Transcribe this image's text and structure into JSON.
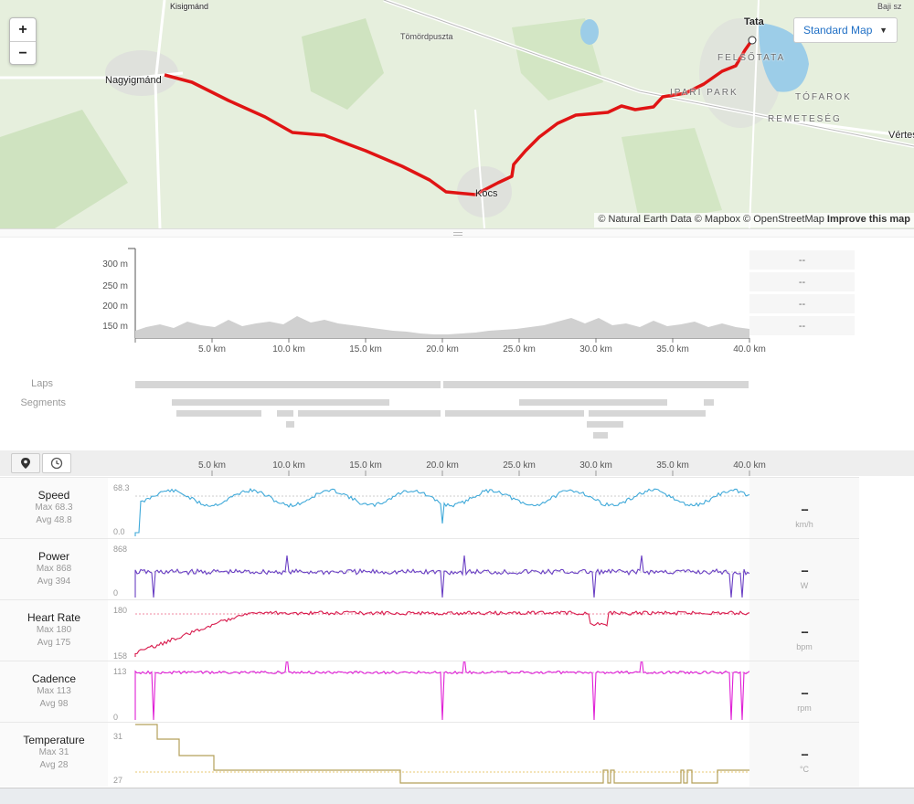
{
  "map": {
    "zoom_in": "+",
    "zoom_out": "−",
    "style_select": "Standard Map",
    "attribution_prefix": "© Natural Earth Data © Mapbox © OpenStreetMap",
    "attribution_link": "Improve this map",
    "labels": {
      "kisigmand": "Kisigmánd",
      "nagyigmand": "Nagyigmánd",
      "tomordpuszta": "Tömördpuszta",
      "tata": "Tata",
      "felsotata": "FELSŐTATA",
      "ipari_park": "IPARI PARK",
      "tofarok": "TÓFAROK",
      "remeteseg": "REMETESÉG",
      "kocs": "Kocs",
      "vertes": "Vértes",
      "baji": "Baji sz"
    }
  },
  "elevation": {
    "y_ticks": [
      "300 m",
      "250 m",
      "200 m",
      "150 m"
    ],
    "x_ticks": [
      "5.0 km",
      "10.0 km",
      "15.0 km",
      "20.0 km",
      "25.0 km",
      "30.0 km",
      "35.0 km",
      "40.0 km"
    ],
    "side_values": [
      "--",
      "--",
      "--",
      "--"
    ],
    "laps_label": "Laps",
    "segments_label": "Segments"
  },
  "toolbar": {
    "x_ticks": [
      "5.0 km",
      "10.0 km",
      "15.0 km",
      "20.0 km",
      "25.0 km",
      "30.0 km",
      "35.0 km",
      "40.0 km"
    ]
  },
  "metrics": [
    {
      "name": "Speed",
      "max": "Max 68.3",
      "avg": "Avg 48.8",
      "top": "68.3",
      "bottom": "0.0",
      "current": "--",
      "unit": "km/h",
      "color": "#3fa9d9"
    },
    {
      "name": "Power",
      "max": "Max 868",
      "avg": "Avg 394",
      "top": "868",
      "bottom": "0",
      "current": "--",
      "unit": "W",
      "color": "#6a3fc4"
    },
    {
      "name": "Heart Rate",
      "max": "Max 180",
      "avg": "Avg 175",
      "top": "180",
      "bottom": "158",
      "current": "--",
      "unit": "bpm",
      "color": "#d81b4d"
    },
    {
      "name": "Cadence",
      "max": "Max 113",
      "avg": "Avg 98",
      "top": "113",
      "bottom": "0",
      "current": "--",
      "unit": "rpm",
      "color": "#e01fd6"
    },
    {
      "name": "Temperature",
      "max": "Max 31",
      "avg": "Avg 28",
      "top": "31",
      "bottom": "27",
      "current": "--",
      "unit": "°C",
      "color": "#b5a05a"
    }
  ]
}
